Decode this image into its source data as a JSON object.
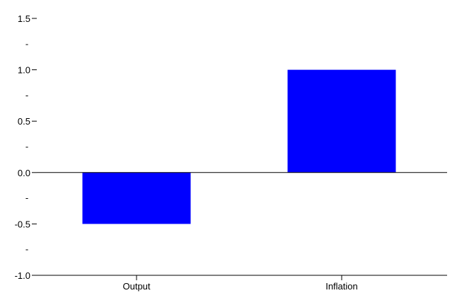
{
  "chart_data": {
    "type": "bar",
    "categories": [
      "Output",
      "Inflation"
    ],
    "values": [
      -0.5,
      1.0
    ],
    "title": "",
    "xlabel": "",
    "ylabel": "",
    "ylim": [
      -1.0,
      1.5
    ],
    "yticks_major": [
      {
        "value": -1.0,
        "label": "-1.0"
      },
      {
        "value": -0.5,
        "label": "-0.5"
      },
      {
        "value": 0.0,
        "label": "0.0"
      },
      {
        "value": 0.5,
        "label": "0.5"
      },
      {
        "value": 1.0,
        "label": "1.0"
      },
      {
        "value": 1.5,
        "label": "1.5"
      }
    ],
    "yticks_minor": [
      -0.75,
      -0.25,
      0.25,
      0.75,
      1.25
    ],
    "minor_tick_label": "-",
    "zero_line": true,
    "grid": false,
    "legend": "none",
    "colors": {
      "bar": "#0000ff",
      "axis": "#000000",
      "background": "#ffffff"
    }
  }
}
